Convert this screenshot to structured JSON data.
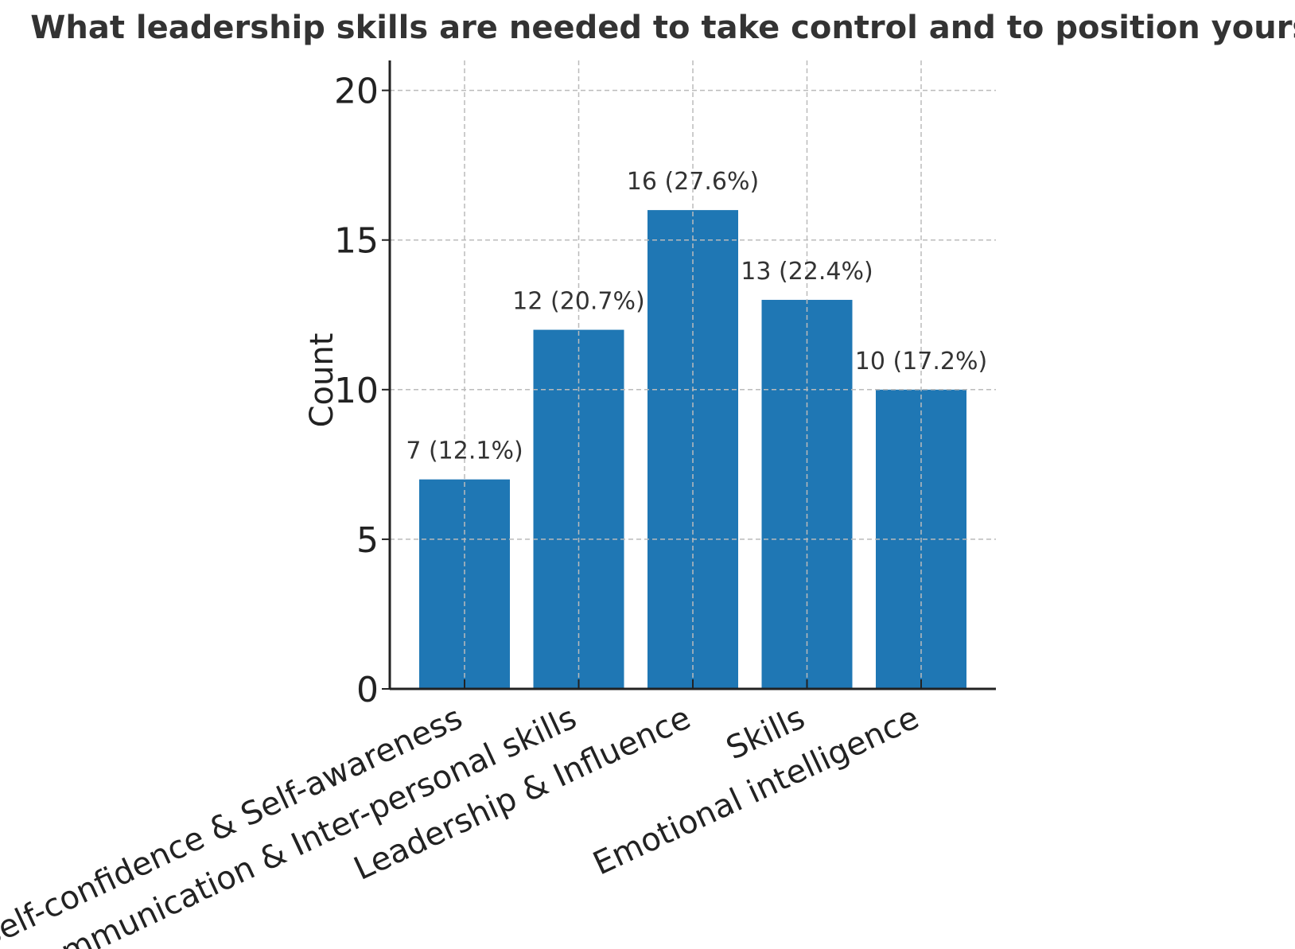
{
  "chart_data": {
    "type": "bar",
    "title": "What leadership skills are needed to take control and to position yourself?",
    "xlabel": "",
    "ylabel": "Count",
    "categories": [
      "Self-confidence & Self-awareness",
      "Communication & Inter-personal skills",
      "Leadership & Influence",
      "Skills",
      "Emotional intelligence"
    ],
    "values": [
      7,
      12,
      16,
      13,
      10
    ],
    "data_labels": [
      "7 (12.1%)",
      "12 (20.7%)",
      "16 (27.6%)",
      "13 (22.4%)",
      "10 (17.2%)"
    ],
    "ylim": [
      0,
      21
    ],
    "yticks": [
      0,
      5,
      10,
      15,
      20
    ],
    "grid": true,
    "bar_color": "#1f77b4"
  }
}
